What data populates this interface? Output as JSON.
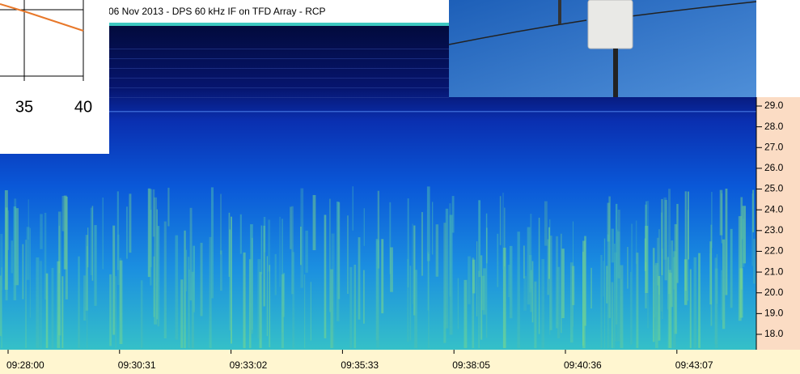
{
  "spectrogram": {
    "title": "06 Nov 2013 - DPS 60 kHz IF on TFD Array - RCP",
    "yticks": [
      {
        "value": 29,
        "label": "29.0"
      },
      {
        "value": 28,
        "label": "28.0"
      },
      {
        "value": 27,
        "label": "27.0"
      },
      {
        "value": 26,
        "label": "26.0"
      },
      {
        "value": 25,
        "label": "25.0"
      },
      {
        "value": 24,
        "label": "24.0"
      },
      {
        "value": 23,
        "label": "23.0"
      },
      {
        "value": 22,
        "label": "22.0"
      },
      {
        "value": 21,
        "label": "21.0"
      },
      {
        "value": 20,
        "label": "20.0"
      },
      {
        "value": 19,
        "label": "19.0"
      },
      {
        "value": 18,
        "label": "18.0"
      }
    ],
    "xticks": [
      "09:28:00",
      "09:30:31",
      "09:33:02",
      "09:35:33",
      "09:38:05",
      "09:40:36",
      "09:43:07"
    ]
  },
  "inset_chart": {
    "xticks": [
      35,
      40
    ]
  }
}
